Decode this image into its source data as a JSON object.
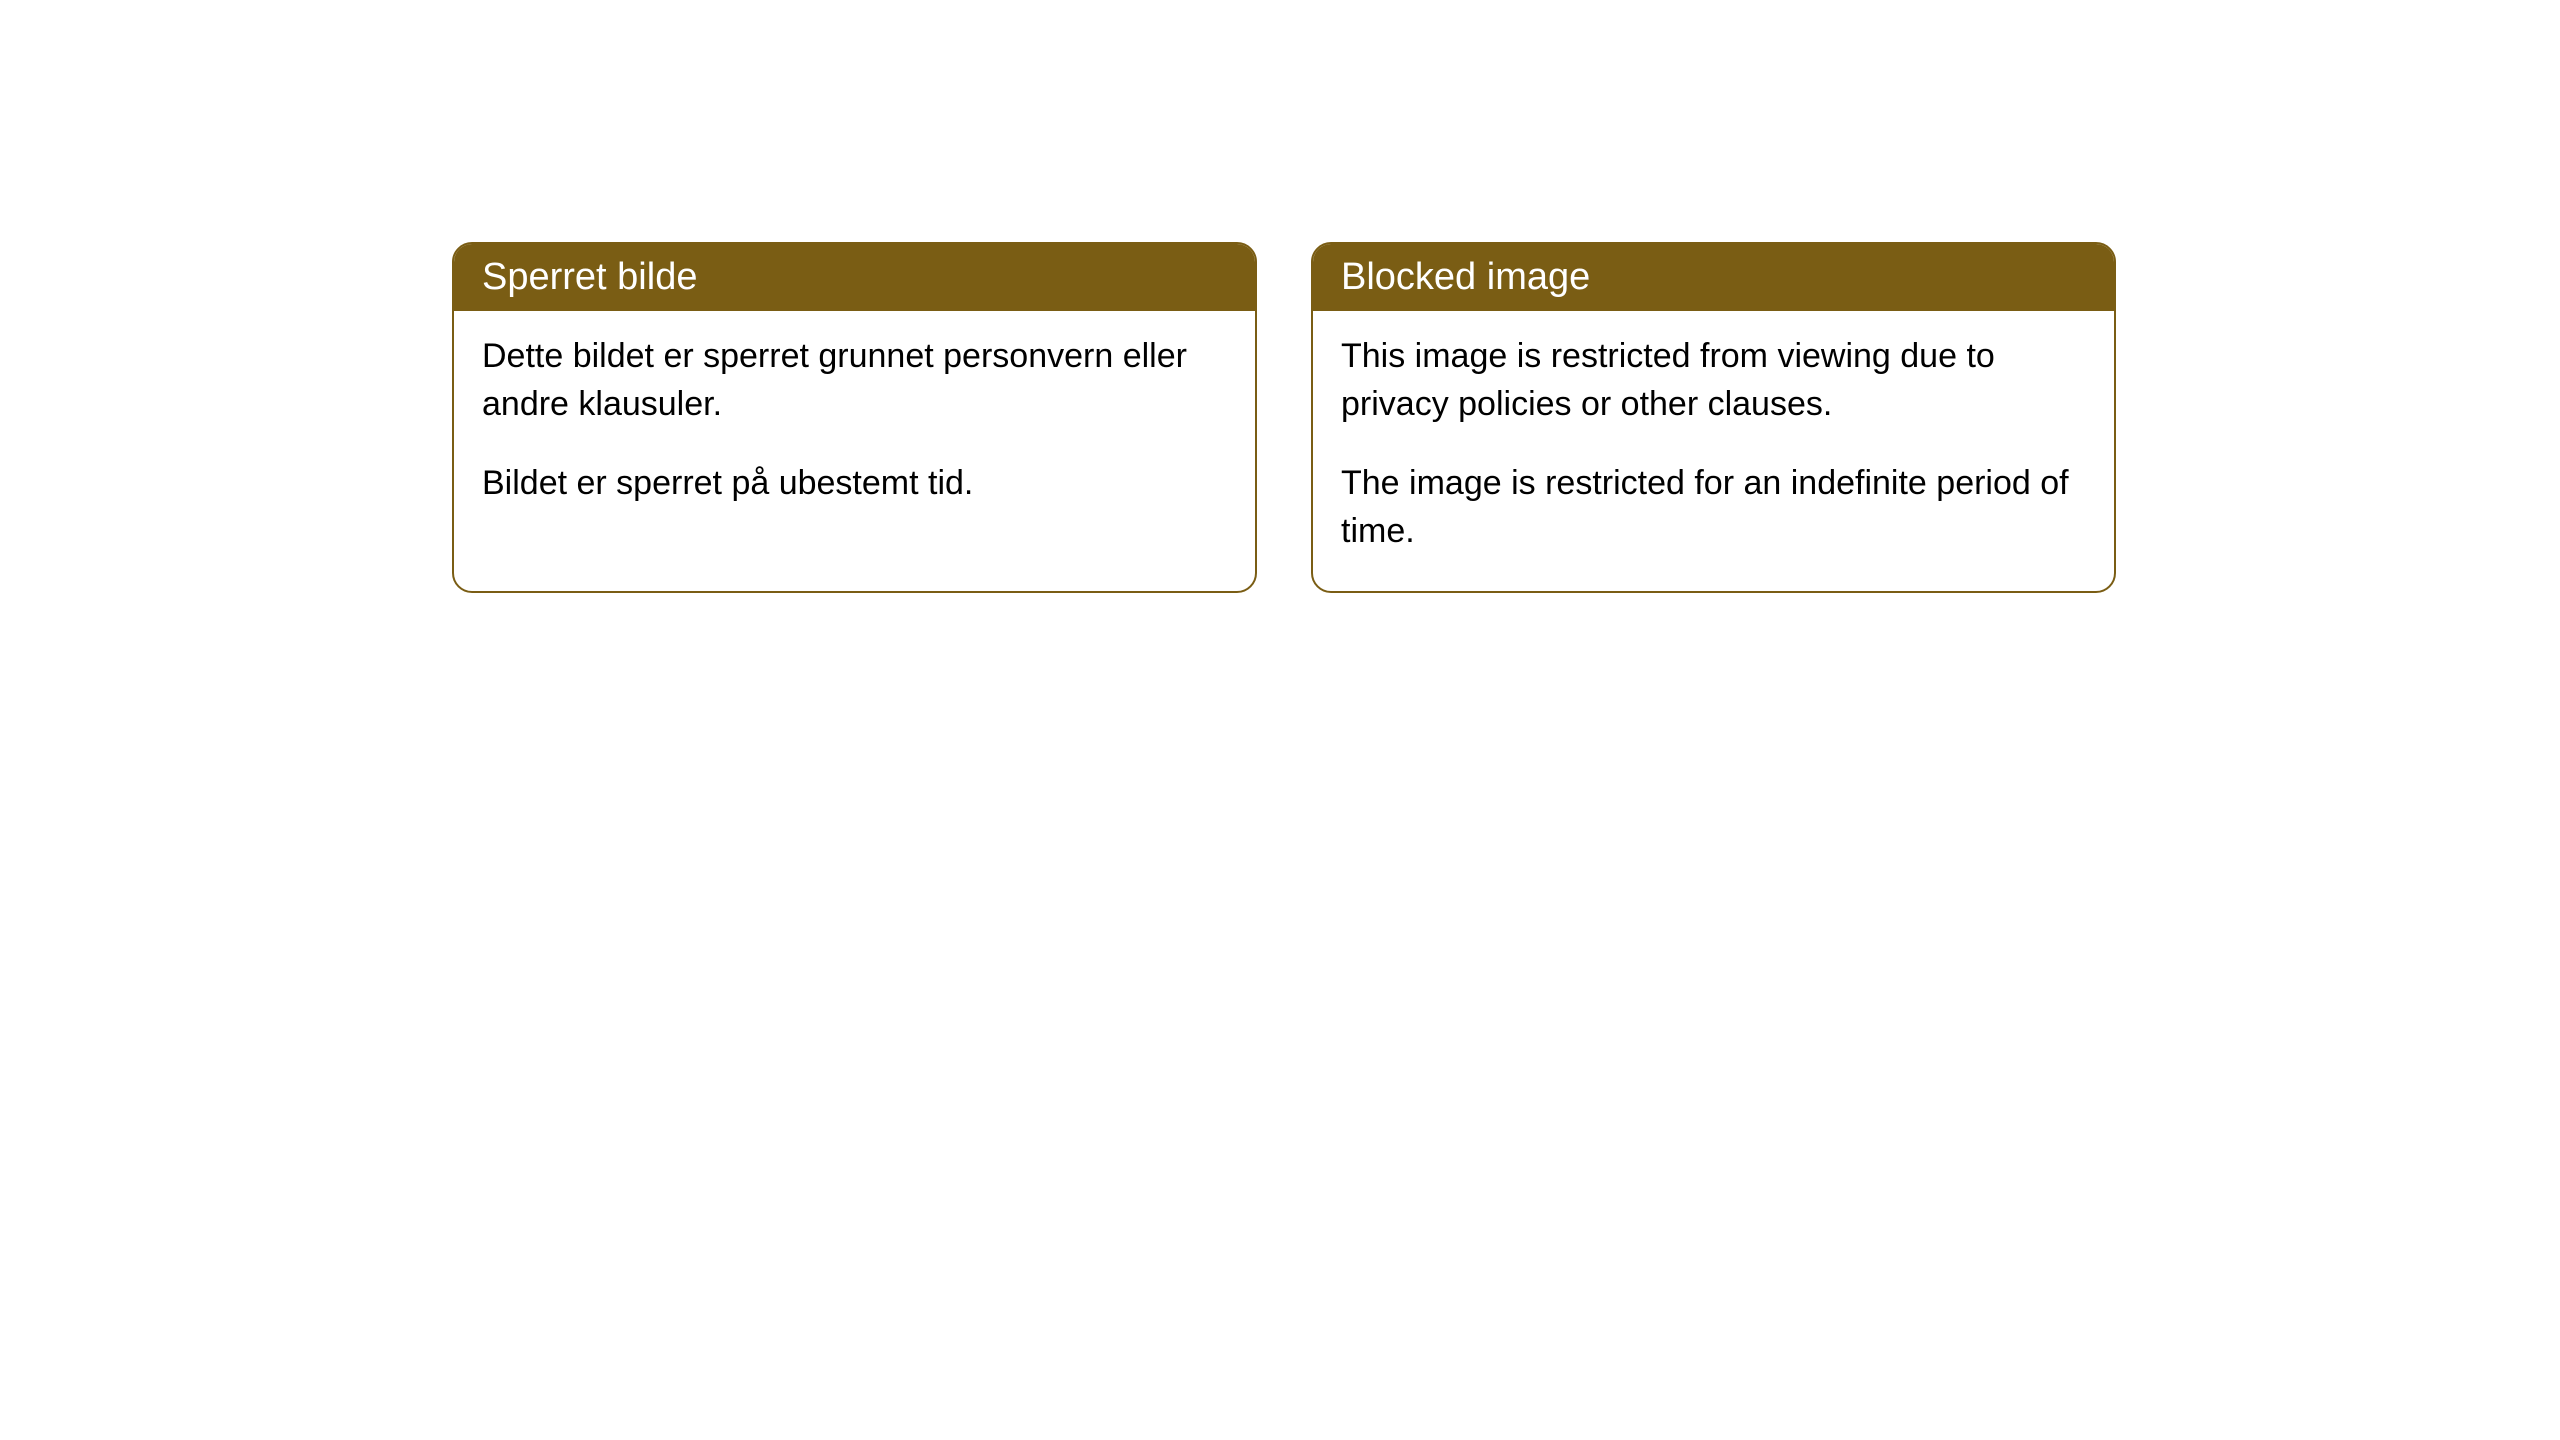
{
  "cards": [
    {
      "title": "Sperret bilde",
      "paragraph1": "Dette bildet er sperret grunnet personvern eller andre klausuler.",
      "paragraph2": "Bildet er sperret på ubestemt tid."
    },
    {
      "title": "Blocked image",
      "paragraph1": "This image is restricted from viewing due to privacy policies or other clauses.",
      "paragraph2": "The image is restricted for an indefinite period of time."
    }
  ],
  "styling": {
    "header_background": "#7a5d14",
    "header_text_color": "#ffffff",
    "body_text_color": "#000000",
    "card_background": "#ffffff",
    "border_color": "#7a5d14",
    "border_radius": 20,
    "header_fontsize": 38,
    "body_fontsize": 34
  }
}
